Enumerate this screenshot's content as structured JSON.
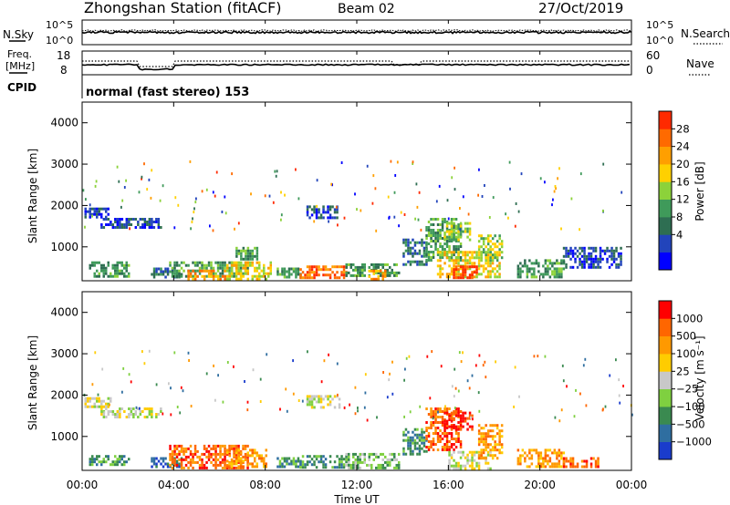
{
  "header": {
    "title": "Zhongshan Station (fitACF)",
    "beam": "Beam 02",
    "date": "27/Oct/2019"
  },
  "noise_panel": {
    "left_label": "N.Sky",
    "right_label": "N.Search",
    "tick_top": "10^5",
    "tick_bottom": "10^0"
  },
  "freq_panel": {
    "left_label_1": "Freq.",
    "left_label_2": "[MHz]",
    "left_ticks": [
      "18",
      "8"
    ],
    "right_label": "Nave",
    "right_ticks": [
      "60",
      "0"
    ]
  },
  "cpid": {
    "label": "CPID",
    "text": "normal (fast stereo) 153"
  },
  "axes": {
    "ylabel": "Slant Range [km]",
    "yticks": [
      "4000",
      "3000",
      "2000",
      "1000"
    ],
    "xlabel": "Time UT",
    "xticks": [
      "00:00",
      "04:00",
      "08:00",
      "12:00",
      "16:00",
      "20:00",
      "00:00"
    ]
  },
  "colorbars": {
    "power": {
      "label": "Power [dB]",
      "ticks": [
        "28",
        "24",
        "20",
        "16",
        "12",
        "8",
        "4"
      ],
      "colors": [
        "#0000ff",
        "#2244bb",
        "#2e6e52",
        "#3f9a5a",
        "#8cd23a",
        "#ffd000",
        "#ff9f00",
        "#ff6a00",
        "#ff2a00"
      ]
    },
    "velocity": {
      "label": "Velocity [m s⁻¹]",
      "ticks": [
        "1000",
        "500",
        "100",
        "25",
        "−25",
        "−100",
        "−500",
        "−1000"
      ],
      "colors": [
        "#1a3ccc",
        "#2f6ea0",
        "#3a8a50",
        "#7fd040",
        "#c8c8c8",
        "#ffcc00",
        "#ff9900",
        "#ff6600",
        "#ff0000"
      ]
    }
  },
  "chart_data": {
    "type": "heatmap",
    "x_range_hours": [
      0,
      24
    ],
    "y_range_km": [
      180,
      4500
    ],
    "power_regions": [
      {
        "t0": 0.1,
        "t1": 1.2,
        "r0": 1750,
        "r1": 1950,
        "level": 1
      },
      {
        "t0": 0.8,
        "t1": 3.4,
        "r0": 1500,
        "r1": 1700,
        "level": 1
      },
      {
        "t0": 0.3,
        "t1": 2.0,
        "r0": 300,
        "r1": 650,
        "level": 3
      },
      {
        "t0": 3.0,
        "t1": 4.3,
        "r0": 250,
        "r1": 500,
        "level": 2
      },
      {
        "t0": 3.8,
        "t1": 7.2,
        "r0": 300,
        "r1": 650,
        "level": 3
      },
      {
        "t0": 4.6,
        "t1": 6.2,
        "r0": 250,
        "r1": 450,
        "level": 6
      },
      {
        "t0": 6.3,
        "t1": 8.2,
        "r0": 250,
        "r1": 650,
        "level": 5
      },
      {
        "t0": 6.7,
        "t1": 7.6,
        "r0": 700,
        "r1": 1000,
        "level": 3
      },
      {
        "t0": 8.5,
        "t1": 9.5,
        "r0": 250,
        "r1": 500,
        "level": 3
      },
      {
        "t0": 9.5,
        "t1": 11.5,
        "r0": 250,
        "r1": 550,
        "level": 7
      },
      {
        "t0": 9.8,
        "t1": 11.2,
        "r0": 1700,
        "r1": 2000,
        "level": 1
      },
      {
        "t0": 11.5,
        "t1": 13.8,
        "r0": 280,
        "r1": 600,
        "level": 3
      },
      {
        "t0": 12.5,
        "t1": 13.2,
        "r0": 250,
        "r1": 450,
        "level": 6
      },
      {
        "t0": 14.0,
        "t1": 15.0,
        "r0": 600,
        "r1": 1200,
        "level": 2
      },
      {
        "t0": 15.0,
        "t1": 16.5,
        "r0": 700,
        "r1": 1700,
        "level": 3
      },
      {
        "t0": 15.8,
        "t1": 16.9,
        "r0": 1150,
        "r1": 1600,
        "level": 4
      },
      {
        "t0": 15.5,
        "t1": 18.2,
        "r0": 250,
        "r1": 900,
        "level": 5
      },
      {
        "t0": 16.2,
        "t1": 17.2,
        "r0": 250,
        "r1": 550,
        "level": 8
      },
      {
        "t0": 17.3,
        "t1": 18.3,
        "r0": 700,
        "r1": 1300,
        "level": 4
      },
      {
        "t0": 19.0,
        "t1": 21.0,
        "r0": 250,
        "r1": 700,
        "level": 3
      },
      {
        "t0": 21.0,
        "t1": 23.5,
        "r0": 500,
        "r1": 1000,
        "level": 1
      }
    ],
    "velocity_regions": [
      {
        "t0": 0.1,
        "t1": 1.2,
        "r0": 1750,
        "r1": 1950,
        "level": 4
      },
      {
        "t0": 0.8,
        "t1": 3.4,
        "r0": 1500,
        "r1": 1700,
        "level": 4
      },
      {
        "t0": 0.3,
        "t1": 2.0,
        "r0": 300,
        "r1": 550,
        "level": 2
      },
      {
        "t0": 3.0,
        "t1": 4.3,
        "r0": 250,
        "r1": 500,
        "level": 1
      },
      {
        "t0": 3.8,
        "t1": 7.2,
        "r0": 250,
        "r1": 800,
        "level": 7
      },
      {
        "t0": 6.3,
        "t1": 8.0,
        "r0": 250,
        "r1": 700,
        "level": 6
      },
      {
        "t0": 8.5,
        "t1": 9.5,
        "r0": 250,
        "r1": 500,
        "level": 2
      },
      {
        "t0": 9.5,
        "t1": 11.5,
        "r0": 250,
        "r1": 550,
        "level": 2
      },
      {
        "t0": 9.8,
        "t1": 11.2,
        "r0": 1700,
        "r1": 2000,
        "level": 4
      },
      {
        "t0": 11.5,
        "t1": 13.8,
        "r0": 250,
        "r1": 600,
        "level": 3
      },
      {
        "t0": 14.0,
        "t1": 15.0,
        "r0": 600,
        "r1": 1200,
        "level": 2
      },
      {
        "t0": 15.0,
        "t1": 16.5,
        "r0": 700,
        "r1": 1700,
        "level": 7
      },
      {
        "t0": 15.8,
        "t1": 17.0,
        "r0": 1150,
        "r1": 1600,
        "level": 8
      },
      {
        "t0": 16.0,
        "t1": 17.8,
        "r0": 250,
        "r1": 650,
        "level": 4
      },
      {
        "t0": 17.3,
        "t1": 18.3,
        "r0": 500,
        "r1": 1300,
        "level": 6
      },
      {
        "t0": 19.0,
        "t1": 21.0,
        "r0": 250,
        "r1": 700,
        "level": 6
      },
      {
        "t0": 21.0,
        "t1": 22.5,
        "r0": 250,
        "r1": 500,
        "level": 7
      }
    ]
  }
}
